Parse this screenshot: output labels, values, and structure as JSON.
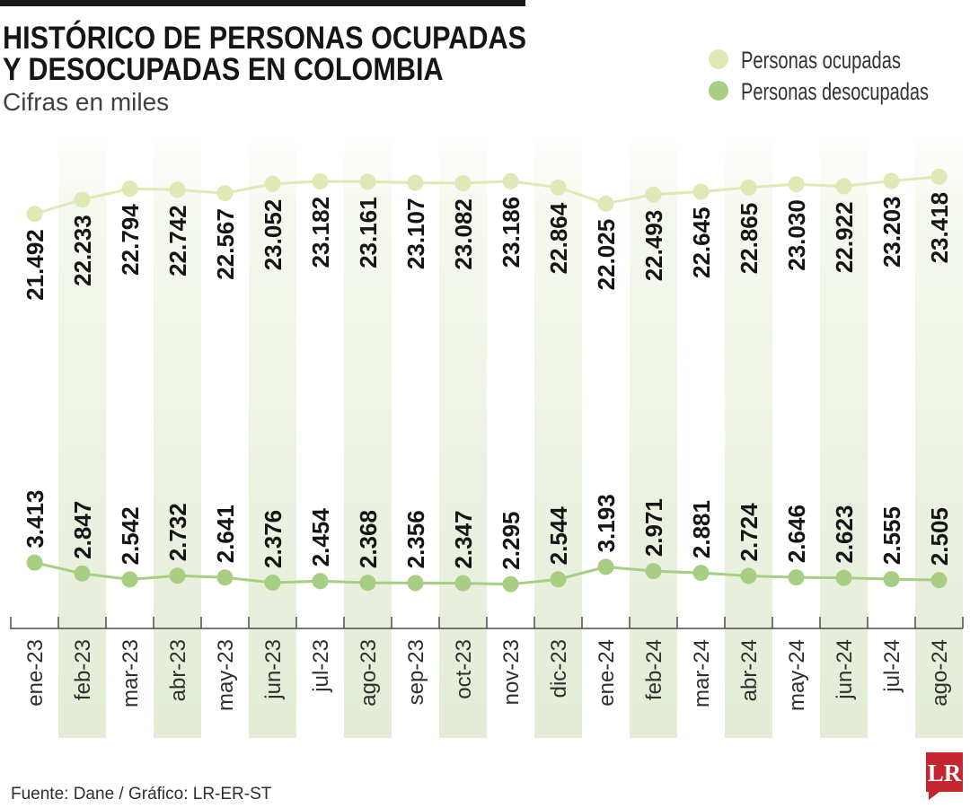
{
  "chart_data": {
    "type": "line",
    "title": "HISTÓRICO DE PERSONAS OCUPADAS\nY DESOCUPADAS EN COLOMBIA",
    "subtitle": "Cifras en miles",
    "categories": [
      "ene-23",
      "feb-23",
      "mar-23",
      "abr-23",
      "may-23",
      "jun-23",
      "jul-23",
      "ago-23",
      "sep-23",
      "oct-23",
      "nov-23",
      "dic-23",
      "ene-24",
      "feb-24",
      "mar-24",
      "abr-24",
      "may-24",
      "jun-24",
      "jul-24",
      "ago-24"
    ],
    "series": [
      {
        "name": "Personas ocupadas",
        "color": "#dfe9b5",
        "values": [
          21492,
          22233,
          22794,
          22742,
          22567,
          23052,
          23182,
          23161,
          23107,
          23082,
          23186,
          22864,
          22025,
          22493,
          22645,
          22865,
          23030,
          22922,
          23203,
          23418
        ],
        "data_labels": [
          "21.492",
          "22.233",
          "22.794",
          "22.742",
          "22.567",
          "23.052",
          "23.182",
          "23.161",
          "23.107",
          "23.082",
          "23.186",
          "22.864",
          "22.025",
          "22.493",
          "22.645",
          "22.865",
          "23.030",
          "22.922",
          "23.203",
          "23.418"
        ]
      },
      {
        "name": "Personas desocupadas",
        "color": "#a8ce84",
        "values": [
          3413,
          2847,
          2542,
          2732,
          2641,
          2376,
          2454,
          2368,
          2356,
          2347,
          2295,
          2544,
          3193,
          2971,
          2881,
          2724,
          2646,
          2623,
          2555,
          2505
        ],
        "data_labels": [
          "3.413",
          "2.847",
          "2.542",
          "2.732",
          "2.641",
          "2.376",
          "2.454",
          "2.368",
          "2.356",
          "2.347",
          "2.295",
          "2.544",
          "3.193",
          "2.971",
          "2.881",
          "2.724",
          "2.646",
          "2.623",
          "2.555",
          "2.505"
        ]
      }
    ],
    "ylim": [
      0,
      25600
    ],
    "grid": false,
    "legend_position": "top-right"
  },
  "source": "Fuente: Dane / Gráfico: LR-ER-ST",
  "logo": {
    "text": "LR",
    "color": "#c4252f"
  },
  "colors": {
    "band": "#e3ecd6",
    "axis": "#4d4d4d",
    "top_bar": "#1a1a1a"
  }
}
